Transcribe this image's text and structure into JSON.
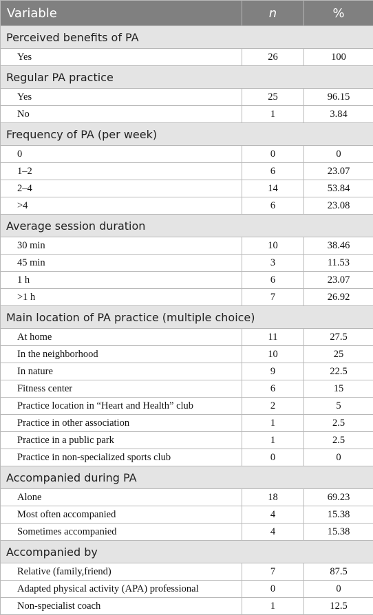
{
  "header": {
    "variable": "Variable",
    "n": "n",
    "percent": "%"
  },
  "sections": [
    {
      "title": "Perceived benefits of PA",
      "rows": [
        {
          "label": "Yes",
          "n": "26",
          "pct": "100"
        }
      ]
    },
    {
      "title": "Regular PA practice",
      "rows": [
        {
          "label": "Yes",
          "n": "25",
          "pct": "96.15"
        },
        {
          "label": "No",
          "n": "1",
          "pct": "3.84"
        }
      ]
    },
    {
      "title": "Frequency of PA (per week)",
      "rows": [
        {
          "label": "0",
          "n": "0",
          "pct": "0"
        },
        {
          "label": "1–2",
          "n": "6",
          "pct": "23.07"
        },
        {
          "label": "2–4",
          "n": "14",
          "pct": "53.84"
        },
        {
          "label": ">4",
          "n": "6",
          "pct": "23.08"
        }
      ]
    },
    {
      "title": "Average session duration",
      "rows": [
        {
          "label": "30 min",
          "n": "10",
          "pct": "38.46"
        },
        {
          "label": "45 min",
          "n": "3",
          "pct": "11.53"
        },
        {
          "label": "1 h",
          "n": "6",
          "pct": "23.07"
        },
        {
          "label": ">1 h",
          "n": "7",
          "pct": "26.92"
        }
      ]
    },
    {
      "title": "Main location of PA practice (multiple choice)",
      "rows": [
        {
          "label": "At home",
          "n": "11",
          "pct": "27.5"
        },
        {
          "label": "In the neighborhood",
          "n": "10",
          "pct": "25"
        },
        {
          "label": "In nature",
          "n": "9",
          "pct": "22.5"
        },
        {
          "label": "Fitness center",
          "n": "6",
          "pct": "15"
        },
        {
          "label": "Practice location in “Heart and Health” club",
          "n": "2",
          "pct": "5"
        },
        {
          "label": "Practice in other association",
          "n": "1",
          "pct": "2.5"
        },
        {
          "label": "Practice in a public park",
          "n": "1",
          "pct": "2.5"
        },
        {
          "label": "Practice in non-specialized sports club",
          "n": "0",
          "pct": "0"
        }
      ]
    },
    {
      "title": "Accompanied during PA",
      "rows": [
        {
          "label": "Alone",
          "n": "18",
          "pct": "69.23"
        },
        {
          "label": "Most often accompanied",
          "n": "4",
          "pct": "15.38"
        },
        {
          "label": "Sometimes accompanied",
          "n": "4",
          "pct": "15.38"
        }
      ]
    },
    {
      "title": "Accompanied by",
      "rows": [
        {
          "label": "Relative (family,friend)",
          "n": "7",
          "pct": "87.5"
        },
        {
          "label": "Adapted physical activity (APA) professional",
          "n": "0",
          "pct": "0"
        },
        {
          "label": "Non-specialist coach",
          "n": "1",
          "pct": "12.5"
        }
      ]
    }
  ]
}
